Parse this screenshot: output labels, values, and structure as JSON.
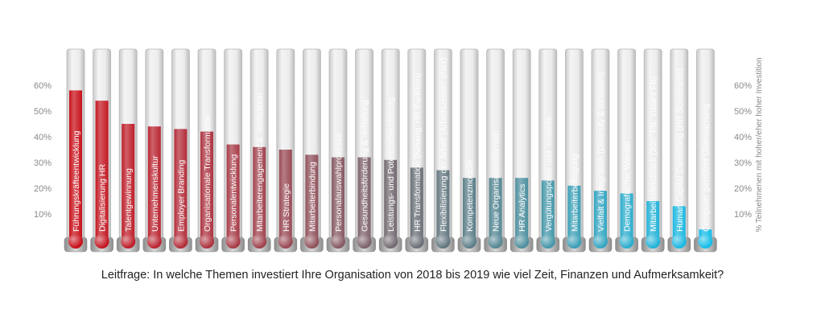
{
  "chart_data": {
    "type": "bar",
    "style": "thermometer",
    "categories": [
      "Führungskräfteentwicklung",
      "Digitalisierung HR",
      "Talentgewinnung",
      "Unternehmenskultur",
      "Employer Branding",
      "Organisationale Transformation",
      "Personalentwicklung",
      "Mitarbeiterengagement & -motivation",
      "HR Strategie",
      "Mitarbeiterbindung",
      "Personalauswahlprozesse",
      "Gesundheitsförderung & -erhaltung",
      "Leistungs- und Potenzialbeurteilung",
      "HR Transformation (Neuorg. HR-Funktion)",
      "Flexibilisierung der Arbeit (Arbeitszeiten/-platz)",
      "Kompetenzmodelle",
      "Neue Organisationsformen",
      "HR Analytics",
      "Vergütungspolitik und -modelle",
      "Mitarbeiterbefragung",
      "Vielfalt & Integration (Diversity & Inclusion)",
      "Demografischer Wandel",
      "Mitarbeiterfeedback (360° FB, instant FB)",
      "Human Capital Controlling (HR Scorecards)",
      "Computer gestützte Überwachung"
    ],
    "values": [
      58,
      54,
      45,
      44,
      43,
      42,
      37,
      36,
      35,
      33,
      32,
      32,
      31,
      28,
      27,
      24,
      24,
      24,
      23,
      21,
      19,
      18,
      15,
      13,
      4
    ],
    "fill_colors": [
      "#c8101a",
      "#c31822",
      "#be1f2a",
      "#b92632",
      "#b32d39",
      "#ad3440",
      "#a73b47",
      "#a0434e",
      "#994a55",
      "#90525c",
      "#875a63",
      "#7d626a",
      "#736a71",
      "#6a7077",
      "#637780",
      "#5c7f89",
      "#558793",
      "#4d8f9e",
      "#4597aa",
      "#3c9fb6",
      "#34a6c2",
      "#2cadcd",
      "#23b3d8",
      "#1cb8e1",
      "#16bde8"
    ],
    "yticks": [
      "10%",
      "20%",
      "30%",
      "40%",
      "50%",
      "60%"
    ],
    "ylim": [
      0,
      70
    ],
    "ylabel": "% Teilnehmenen mit hoher/eher hoher Investition",
    "caption": "Leitfrage: In welche Themen investiert Ihre Organisation von 2018 bis 2019 wie viel Zeit, Finanzen und Aufmerksamkeit?"
  }
}
